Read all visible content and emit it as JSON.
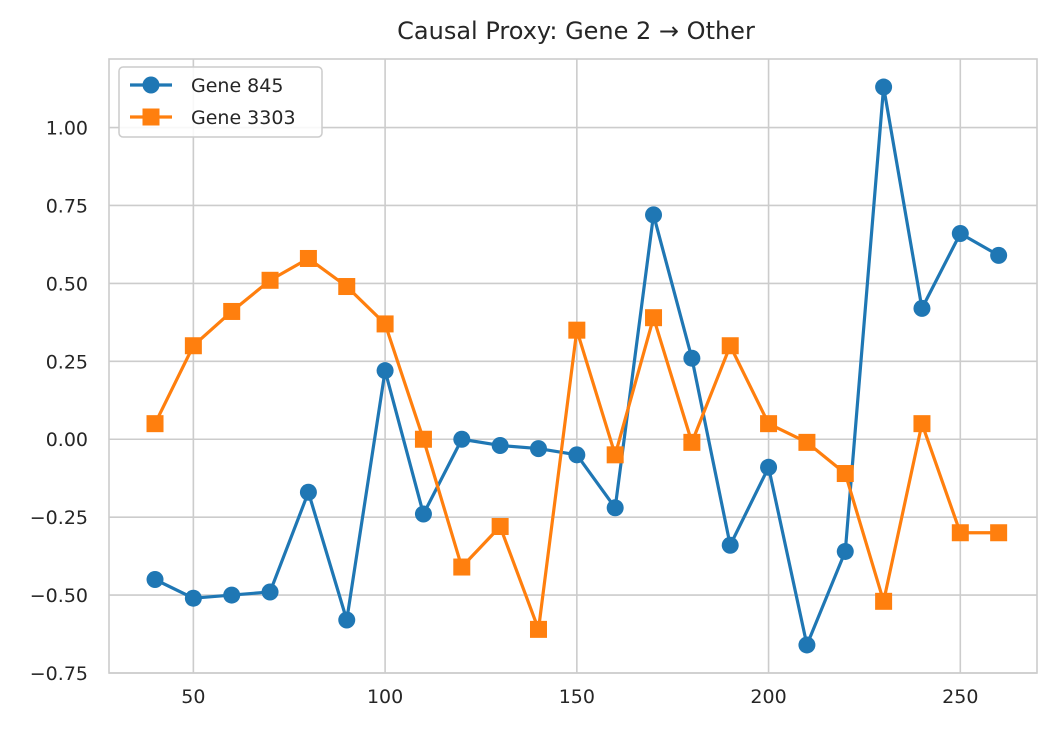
{
  "chart_data": {
    "type": "line",
    "title": "Causal Proxy: Gene 2 → Other",
    "xlabel": "",
    "ylabel": "",
    "xlim": [
      28,
      270
    ],
    "ylim": [
      -0.75,
      1.22
    ],
    "grid": true,
    "legend_position": "upper-left",
    "x_ticks": [
      50,
      100,
      150,
      200,
      250
    ],
    "x_tick_labels": [
      "50",
      "100",
      "150",
      "200",
      "250"
    ],
    "y_ticks": [
      -0.75,
      -0.5,
      -0.25,
      0.0,
      0.25,
      0.5,
      0.75,
      1.0
    ],
    "y_tick_labels": [
      "−0.75",
      "−0.50",
      "−0.25",
      "0.00",
      "0.25",
      "0.50",
      "0.75",
      "1.00"
    ],
    "x": [
      40,
      50,
      60,
      70,
      80,
      90,
      100,
      110,
      120,
      130,
      140,
      150,
      160,
      170,
      180,
      190,
      200,
      210,
      220,
      230,
      240,
      250,
      260
    ],
    "series": [
      {
        "name": "Gene 845",
        "color": "#1f77b4",
        "marker": "circle",
        "values": [
          -0.45,
          -0.51,
          -0.5,
          -0.49,
          -0.17,
          -0.58,
          0.22,
          -0.24,
          0.0,
          -0.02,
          -0.03,
          -0.05,
          -0.22,
          0.72,
          0.26,
          -0.34,
          -0.09,
          -0.66,
          -0.36,
          1.13,
          0.42,
          0.66,
          0.59
        ]
      },
      {
        "name": "Gene 3303",
        "color": "#ff7f0e",
        "marker": "square",
        "values": [
          0.05,
          0.3,
          0.41,
          0.51,
          0.58,
          0.49,
          0.37,
          0.0,
          -0.41,
          -0.28,
          -0.61,
          0.35,
          -0.05,
          0.39,
          -0.01,
          0.3,
          0.05,
          -0.01,
          -0.11,
          -0.52,
          0.05,
          -0.3,
          -0.3
        ]
      }
    ]
  }
}
